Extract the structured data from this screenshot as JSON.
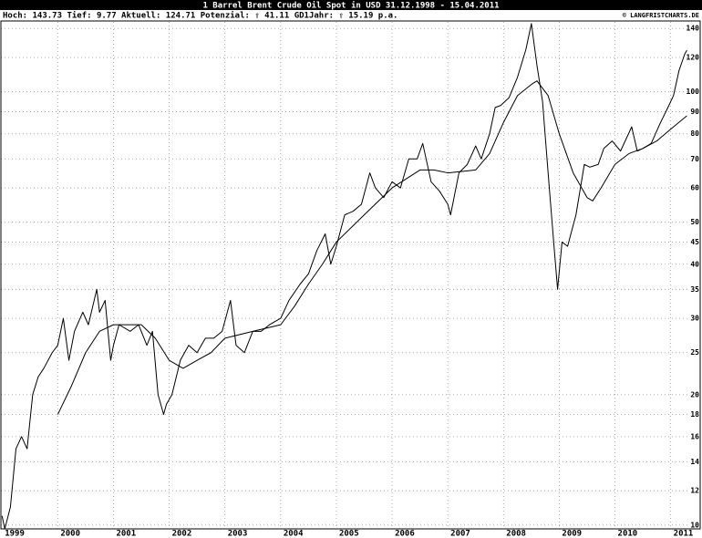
{
  "chart_data": {
    "type": "line",
    "title": "1 Barrel Brent Crude Oil Spot in USD 31.12.1998 - 15.04.2011",
    "subtitle": "Hoch: 143.73  Tief: 9.77  Aktuell: 124.71  Potenzial: ⇧ 41.11  GD1Jahr: ⇧ 15.19 p.a.",
    "source": "© LANGFRISTCHARTS.DE",
    "log_scale": true,
    "grid": true,
    "xlim": [
      1998.98,
      2011.3
    ],
    "xticks": [
      1999,
      2000,
      2001,
      2002,
      2003,
      2004,
      2005,
      2006,
      2007,
      2008,
      2009,
      2010,
      2011
    ],
    "ylim": [
      9.8,
      145
    ],
    "yticks": [
      10,
      12,
      14,
      16,
      18,
      20,
      25,
      30,
      35,
      40,
      45,
      50,
      60,
      70,
      80,
      90,
      100,
      120,
      140
    ],
    "series": [
      {
        "color": "#000000",
        "x": [
          1999.0,
          1999.05,
          1999.15,
          1999.25,
          1999.35,
          1999.45,
          1999.55,
          1999.65,
          1999.75,
          1999.9,
          2000.0,
          2000.1,
          2000.2,
          2000.3,
          2000.45,
          2000.55,
          2000.7,
          2000.75,
          2000.85,
          2000.95,
          2001.0,
          2001.1,
          2001.3,
          2001.45,
          2001.6,
          2001.7,
          2001.8,
          2001.9,
          2001.95,
          2002.05,
          2002.2,
          2002.35,
          2002.5,
          2002.65,
          2002.8,
          2002.95,
          2003.1,
          2003.2,
          2003.35,
          2003.5,
          2003.65,
          2003.8,
          2004.0,
          2004.15,
          2004.35,
          2004.5,
          2004.65,
          2004.8,
          2004.9,
          2005.0,
          2005.15,
          2005.3,
          2005.45,
          2005.6,
          2005.7,
          2005.85,
          2006.0,
          2006.15,
          2006.3,
          2006.45,
          2006.55,
          2006.7,
          2006.85,
          2007.0,
          2007.05,
          2007.2,
          2007.35,
          2007.5,
          2007.6,
          2007.75,
          2007.85,
          2007.95,
          2008.1,
          2008.25,
          2008.4,
          2008.5,
          2008.6,
          2008.7,
          2008.8,
          2008.9,
          2008.97,
          2009.05,
          2009.15,
          2009.3,
          2009.45,
          2009.55,
          2009.7,
          2009.8,
          2009.95,
          2010.1,
          2010.3,
          2010.4,
          2010.5,
          2010.65,
          2010.8,
          2010.95,
          2011.05,
          2011.15,
          2011.25,
          2011.29
        ],
        "values": [
          10.5,
          9.8,
          11,
          15,
          16,
          15,
          20,
          22,
          23,
          25,
          26,
          30,
          24,
          28,
          31,
          29,
          35,
          31,
          33,
          24,
          26,
          29,
          28,
          29,
          26,
          28,
          20,
          18,
          19,
          20,
          24,
          26,
          25,
          27,
          27,
          28,
          33,
          26,
          25,
          28,
          28,
          29,
          30,
          33,
          36,
          38,
          43,
          47,
          40,
          44,
          52,
          53,
          55,
          65,
          60,
          57,
          62,
          60,
          70,
          70,
          76,
          62,
          59,
          55,
          52,
          65,
          68,
          75,
          70,
          80,
          92,
          93,
          97,
          108,
          125,
          143.7,
          115,
          95,
          65,
          45,
          35,
          45,
          44,
          52,
          68,
          67,
          68,
          74,
          77,
          73,
          83,
          73,
          74,
          76,
          84,
          92,
          98,
          112,
          122,
          124.71
        ]
      },
      {
        "color": "#000000",
        "x": [
          2000.0,
          2000.25,
          2000.5,
          2000.75,
          2001.0,
          2001.5,
          2001.75,
          2002.0,
          2002.25,
          2002.5,
          2002.75,
          2003.0,
          2003.5,
          2004.0,
          2004.25,
          2004.5,
          2004.75,
          2005.0,
          2005.5,
          2006.0,
          2006.5,
          2006.75,
          2007.0,
          2007.5,
          2007.75,
          2008.0,
          2008.25,
          2008.5,
          2008.6,
          2008.8,
          2009.0,
          2009.25,
          2009.5,
          2009.6,
          2009.75,
          2010.0,
          2010.25,
          2010.5,
          2010.75,
          2011.0,
          2011.29
        ],
        "values": [
          18,
          21,
          25,
          28,
          29,
          29,
          27,
          24,
          23,
          24,
          25,
          27,
          28,
          29,
          32,
          36,
          40,
          45,
          52,
          60,
          66,
          66,
          65,
          66,
          72,
          85,
          98,
          104,
          106,
          98,
          80,
          65,
          57,
          56,
          60,
          68,
          72,
          74,
          77,
          82,
          88
        ]
      }
    ]
  }
}
